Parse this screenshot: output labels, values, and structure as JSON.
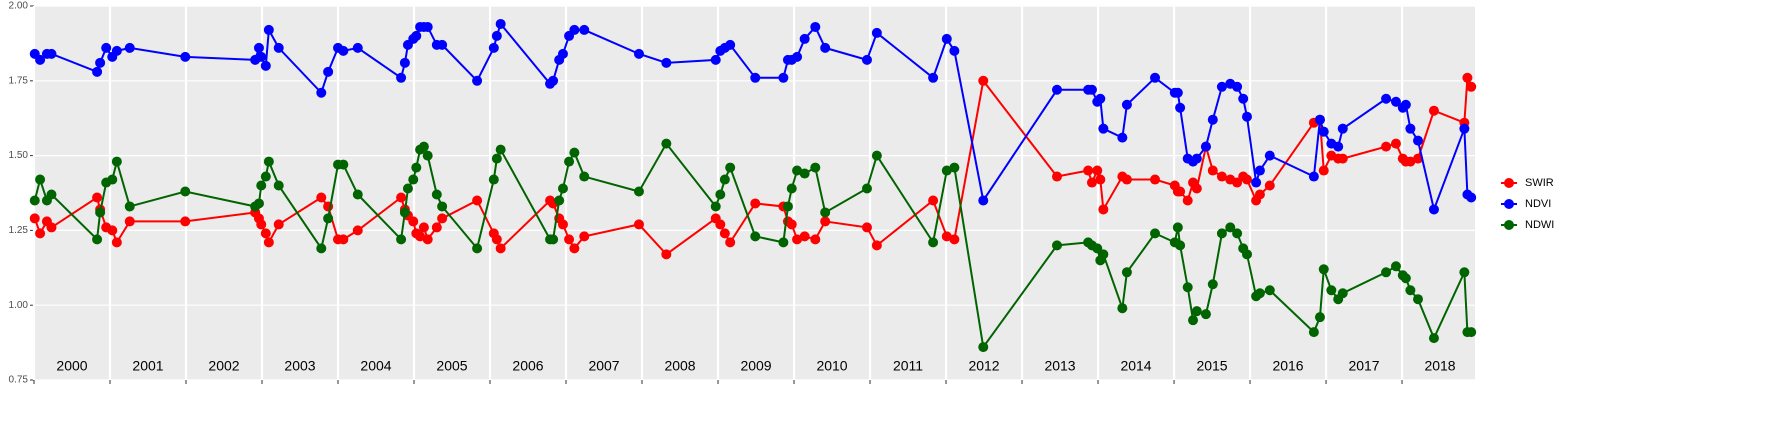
{
  "chart_data": {
    "type": "line",
    "x": [
      2000.01,
      2000.08,
      2000.17,
      2000.23,
      2000.83,
      2000.87,
      2000.95,
      2001.03,
      2001.09,
      2001.26,
      2001.99,
      2002.91,
      2002.96,
      2002.99,
      2003.05,
      2003.09,
      2003.22,
      2003.78,
      2003.87,
      2004.0,
      2004.07,
      2004.26,
      2004.83,
      2004.88,
      2004.92,
      2004.99,
      2005.03,
      2005.08,
      2005.13,
      2005.18,
      2005.3,
      2005.37,
      2005.83,
      2006.05,
      2006.09,
      2006.14,
      2006.79,
      2006.83,
      2006.91,
      2006.96,
      2007.04,
      2007.11,
      2007.24,
      2007.96,
      2008.32,
      2008.97,
      2009.03,
      2009.09,
      2009.16,
      2009.49,
      2009.86,
      2009.92,
      2009.97,
      2010.04,
      2010.14,
      2010.28,
      2010.41,
      2010.96,
      2011.09,
      2011.83,
      2012.01,
      2012.11,
      2012.49,
      2013.46,
      2013.87,
      2013.92,
      2013.99,
      2014.03,
      2014.07,
      2014.32,
      2014.38,
      2014.75,
      2015.01,
      2015.05,
      2015.08,
      2015.18,
      2015.25,
      2015.3,
      2015.42,
      2015.51,
      2015.63,
      2015.74,
      2015.83,
      2015.91,
      2015.96,
      2016.08,
      2016.13,
      2016.26,
      2016.84,
      2016.92,
      2016.97,
      2017.07,
      2017.16,
      2017.22,
      2017.79,
      2017.92,
      2018.01,
      2018.05,
      2018.11,
      2018.21,
      2018.42,
      2018.82,
      2018.86,
      2018.91
    ],
    "series": [
      {
        "name": "SWIR",
        "color": "#ff0000",
        "values": [
          1.29,
          1.24,
          1.28,
          1.26,
          1.36,
          1.32,
          1.26,
          1.25,
          1.21,
          1.28,
          1.28,
          1.31,
          1.29,
          1.27,
          1.24,
          1.21,
          1.27,
          1.36,
          1.33,
          1.22,
          1.22,
          1.25,
          1.36,
          1.32,
          1.3,
          1.28,
          1.24,
          1.23,
          1.26,
          1.22,
          1.26,
          1.29,
          1.35,
          1.24,
          1.22,
          1.19,
          1.35,
          1.34,
          1.29,
          1.27,
          1.22,
          1.19,
          1.23,
          1.27,
          1.17,
          1.29,
          1.27,
          1.24,
          1.21,
          1.34,
          1.33,
          1.28,
          1.27,
          1.22,
          1.23,
          1.22,
          1.28,
          1.26,
          1.2,
          1.35,
          1.23,
          1.22,
          1.75,
          1.43,
          1.45,
          1.41,
          1.45,
          1.42,
          1.32,
          1.43,
          1.42,
          1.42,
          1.4,
          1.38,
          1.38,
          1.35,
          1.41,
          1.39,
          1.53,
          1.45,
          1.43,
          1.42,
          1.41,
          1.43,
          1.42,
          1.35,
          1.37,
          1.4,
          1.61,
          1.62,
          1.45,
          1.5,
          1.49,
          1.49,
          1.53,
          1.54,
          1.49,
          1.48,
          1.48,
          1.49,
          1.65,
          1.61,
          1.76,
          1.73
        ]
      },
      {
        "name": "NDVI",
        "color": "#0000ff",
        "values": [
          1.84,
          1.82,
          1.84,
          1.84,
          1.78,
          1.81,
          1.86,
          1.83,
          1.85,
          1.86,
          1.83,
          1.82,
          1.86,
          1.83,
          1.8,
          1.92,
          1.86,
          1.71,
          1.78,
          1.86,
          1.85,
          1.86,
          1.76,
          1.81,
          1.87,
          1.89,
          1.9,
          1.93,
          1.93,
          1.93,
          1.87,
          1.87,
          1.75,
          1.86,
          1.9,
          1.94,
          1.74,
          1.75,
          1.82,
          1.84,
          1.9,
          1.92,
          1.92,
          1.84,
          1.81,
          1.82,
          1.85,
          1.86,
          1.87,
          1.76,
          1.76,
          1.82,
          1.82,
          1.83,
          1.89,
          1.93,
          1.86,
          1.82,
          1.91,
          1.76,
          1.89,
          1.85,
          1.35,
          1.72,
          1.72,
          1.72,
          1.68,
          1.69,
          1.59,
          1.56,
          1.67,
          1.76,
          1.71,
          1.71,
          1.66,
          1.49,
          1.48,
          1.49,
          1.53,
          1.62,
          1.73,
          1.74,
          1.73,
          1.69,
          1.63,
          1.41,
          1.45,
          1.5,
          1.43,
          1.62,
          1.58,
          1.54,
          1.53,
          1.59,
          1.69,
          1.68,
          1.66,
          1.67,
          1.59,
          1.55,
          1.32,
          1.59,
          1.37,
          1.36
        ]
      },
      {
        "name": "NDWI",
        "color": "#006400",
        "values": [
          1.35,
          1.42,
          1.35,
          1.37,
          1.22,
          1.31,
          1.41,
          1.42,
          1.48,
          1.33,
          1.38,
          1.33,
          1.34,
          1.4,
          1.43,
          1.48,
          1.4,
          1.19,
          1.29,
          1.47,
          1.47,
          1.37,
          1.22,
          1.31,
          1.39,
          1.42,
          1.46,
          1.52,
          1.53,
          1.5,
          1.37,
          1.33,
          1.19,
          1.42,
          1.49,
          1.52,
          1.22,
          1.22,
          1.35,
          1.39,
          1.48,
          1.51,
          1.43,
          1.38,
          1.54,
          1.33,
          1.37,
          1.42,
          1.46,
          1.23,
          1.21,
          1.33,
          1.39,
          1.45,
          1.44,
          1.46,
          1.31,
          1.39,
          1.5,
          1.21,
          1.45,
          1.46,
          0.86,
          1.2,
          1.21,
          1.2,
          1.19,
          1.15,
          1.17,
          0.99,
          1.11,
          1.24,
          1.21,
          1.26,
          1.2,
          1.06,
          0.95,
          0.98,
          0.97,
          1.07,
          1.24,
          1.26,
          1.24,
          1.19,
          1.17,
          1.03,
          1.04,
          1.05,
          0.91,
          0.96,
          1.12,
          1.05,
          1.02,
          1.04,
          1.11,
          1.13,
          1.1,
          1.09,
          1.05,
          1.02,
          0.89,
          1.11,
          0.91,
          0.91
        ]
      }
    ],
    "year_labels": [
      2000,
      2001,
      2002,
      2003,
      2004,
      2005,
      2006,
      2007,
      2008,
      2009,
      2010,
      2011,
      2012,
      2013,
      2014,
      2015,
      2016,
      2017,
      2018
    ],
    "xlim": [
      2000,
      2018.96
    ],
    "xticks": [
      2000,
      2001,
      2002,
      2003,
      2004,
      2005,
      2006,
      2007,
      2008,
      2009,
      2010,
      2011,
      2012,
      2013,
      2014,
      2015,
      2016,
      2017,
      2018
    ],
    "ylim": [
      0.75,
      2.0
    ],
    "yticks": [
      {
        "value": 0.75,
        "label": "0.75"
      },
      {
        "value": 1,
        "label": "1.00"
      },
      {
        "value": 1.25,
        "label": "1.25"
      },
      {
        "value": 1.5,
        "label": "1.50"
      },
      {
        "value": 1.75,
        "label": "1.75"
      },
      {
        "value": 2,
        "label": "2.00"
      }
    ],
    "grid": true,
    "legend": "right"
  }
}
